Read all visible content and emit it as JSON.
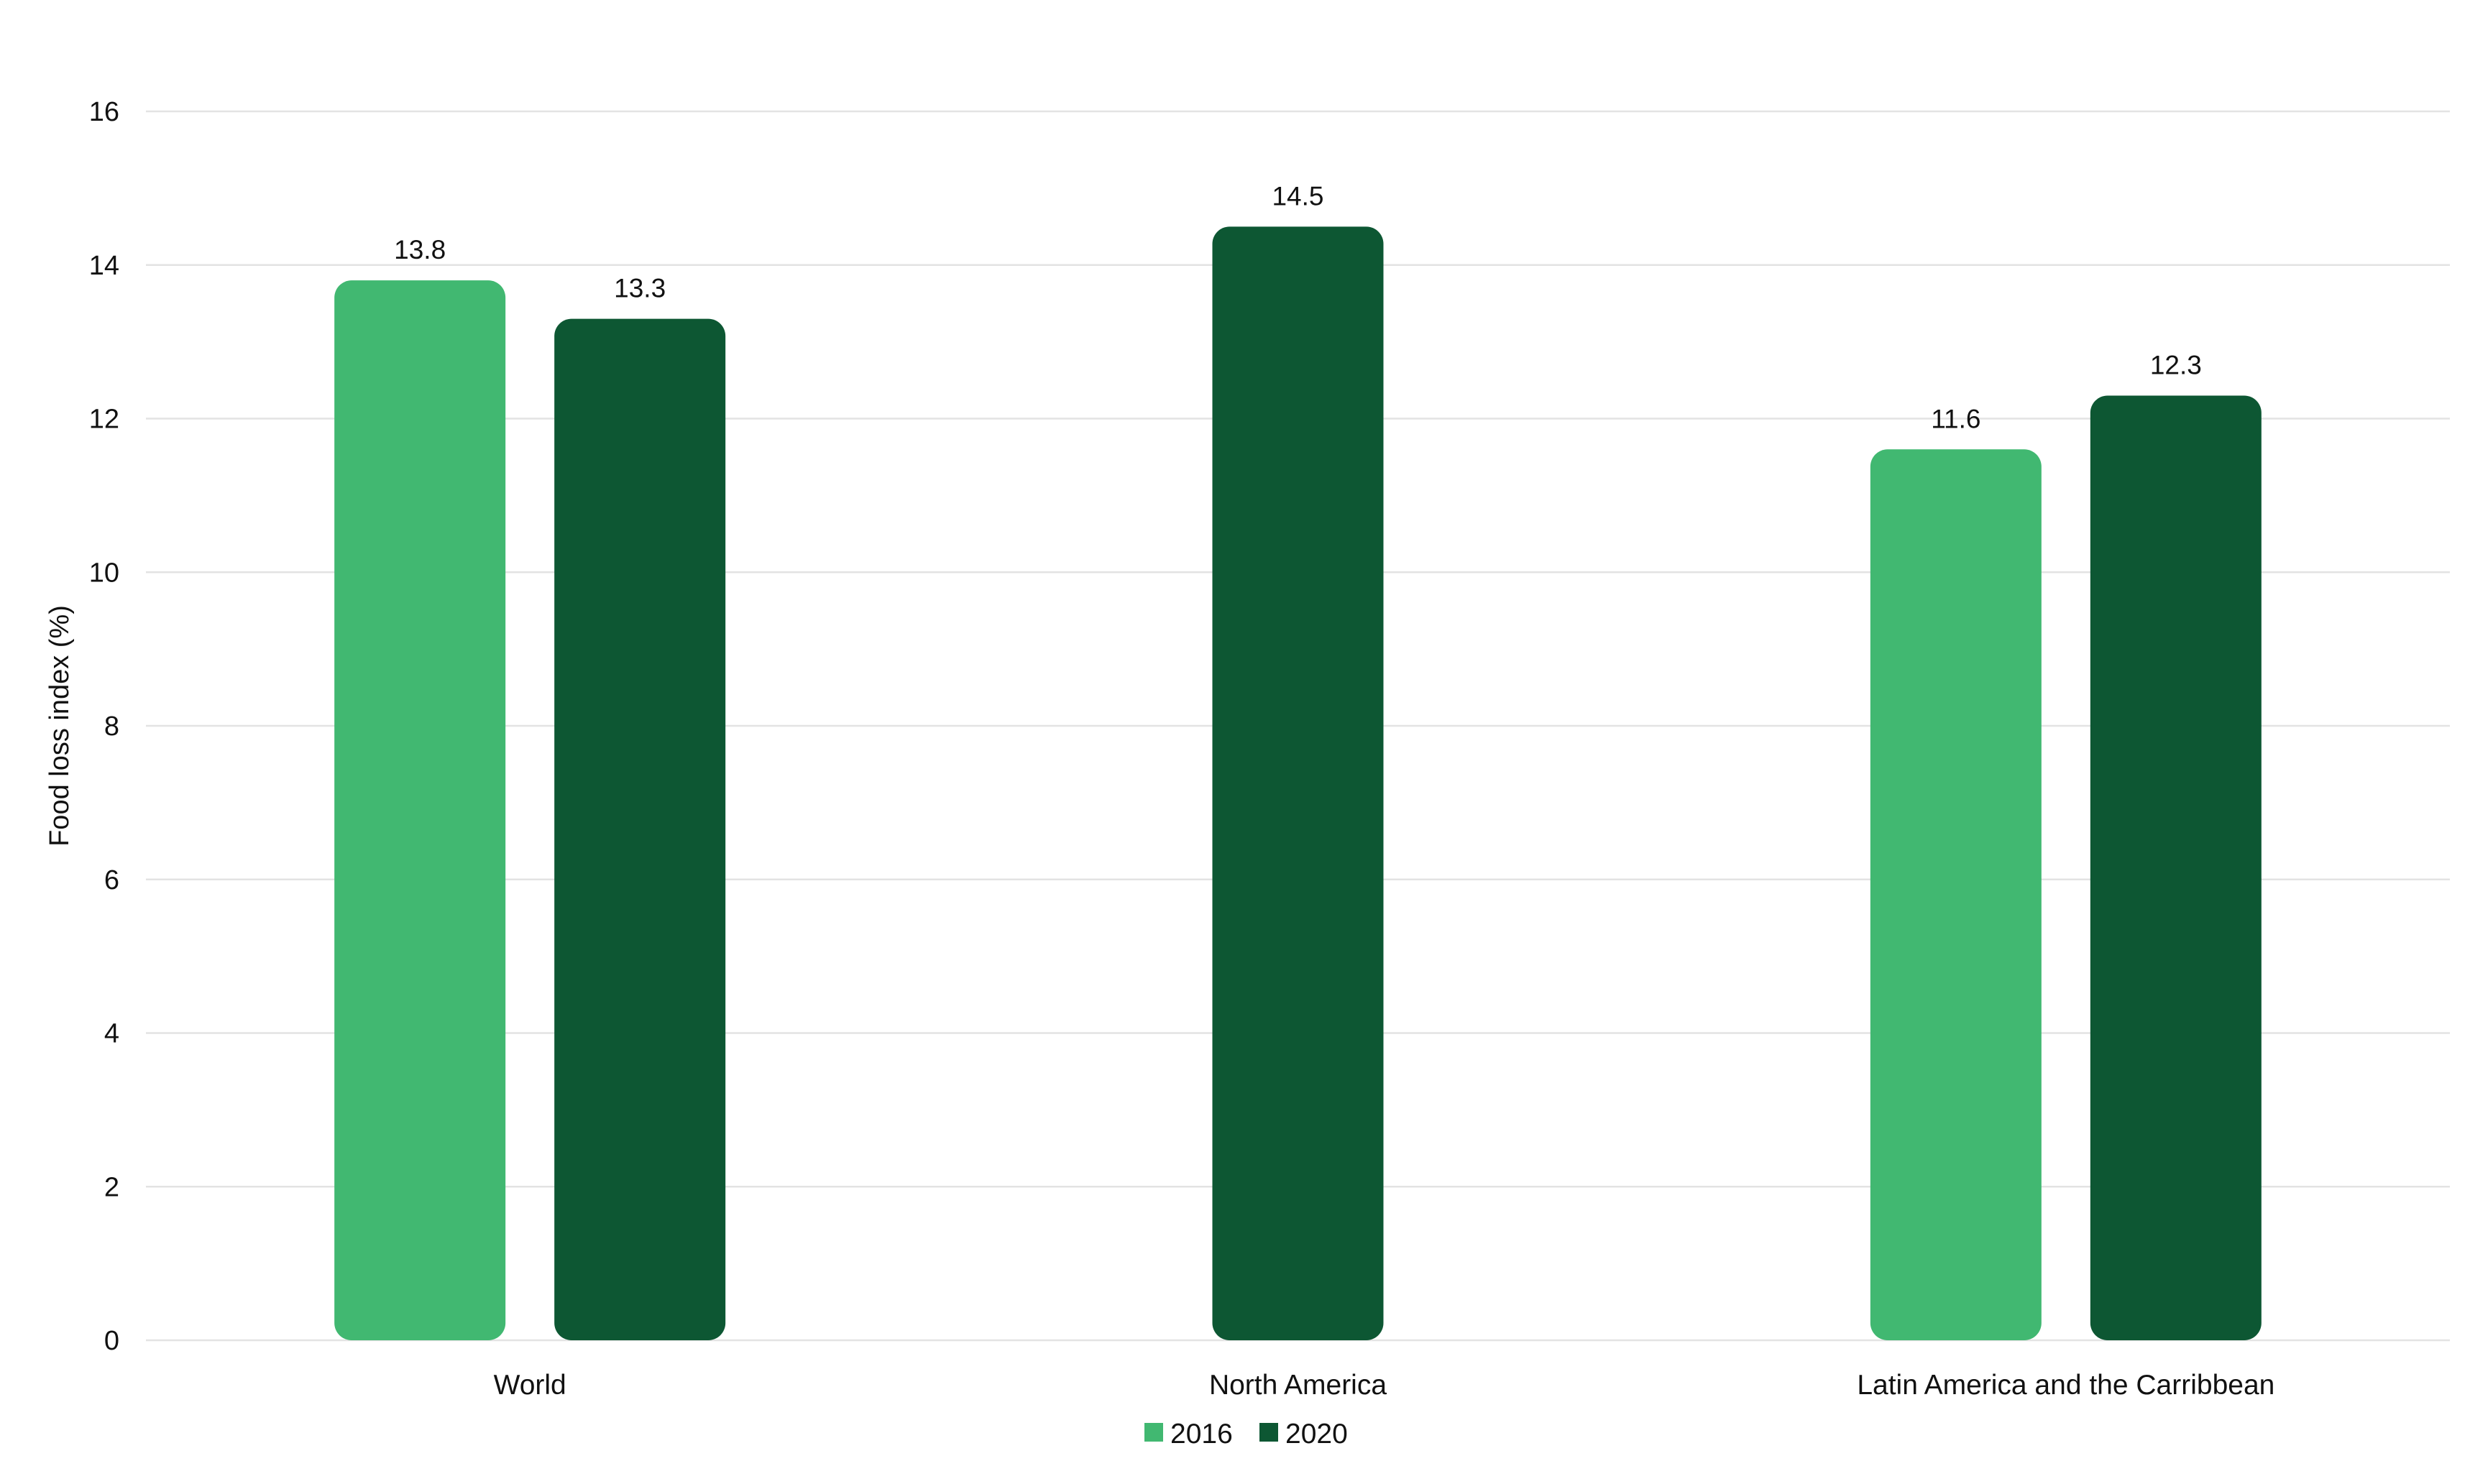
{
  "chart_data": {
    "type": "bar",
    "title": "",
    "xlabel": "",
    "ylabel": "Food loss index (%)",
    "ylim": [
      0,
      16
    ],
    "yticks": [
      0,
      2,
      4,
      6,
      8,
      10,
      12,
      14,
      16
    ],
    "grid": true,
    "legend_position": "bottom",
    "categories": [
      "World",
      "North America",
      "Latin America and the Carribbean"
    ],
    "series": [
      {
        "name": "2016",
        "color": "#41b871",
        "values": [
          13.8,
          null,
          11.6
        ]
      },
      {
        "name": "2020",
        "color": "#0d5733",
        "values": [
          13.3,
          14.5,
          12.3
        ]
      }
    ]
  }
}
